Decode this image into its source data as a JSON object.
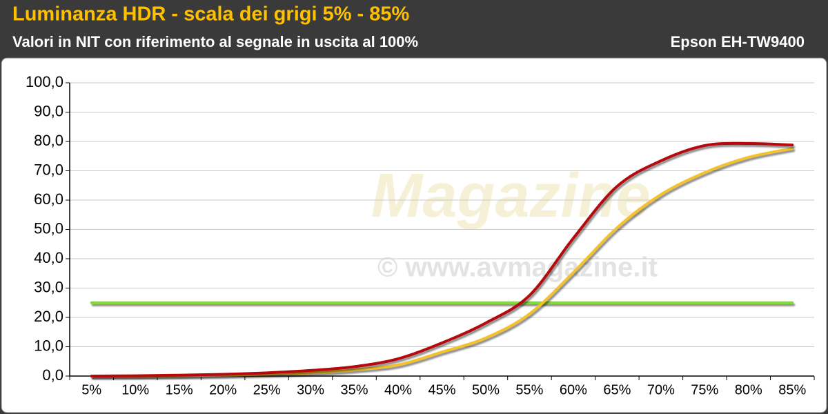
{
  "chart_data": {
    "type": "line",
    "title": "Luminanza HDR - scala dei grigi 5% - 85%",
    "subtitle": "Valori in NIT con riferimento al segnale in uscita al 100%",
    "device": "Epson EH-TW9400",
    "watermark": [
      "Magazine",
      "© www.avmagazine.it"
    ],
    "categories": [
      "5%",
      "10%",
      "15%",
      "20%",
      "25%",
      "30%",
      "35%",
      "40%",
      "45%",
      "50%",
      "55%",
      "60%",
      "65%",
      "70%",
      "75%",
      "80%",
      "85%"
    ],
    "series": [
      {
        "color": "#7fe02a",
        "values": [
          25,
          25,
          25,
          25,
          25,
          25,
          25,
          25,
          25,
          25,
          25,
          25,
          25,
          25,
          25,
          25,
          25
        ]
      },
      {
        "color": "#f5c22b",
        "values": [
          0,
          0,
          0.1,
          0.3,
          0.6,
          1.1,
          2.1,
          3.8,
          8.2,
          13,
          21.2,
          35.3,
          50.6,
          61.9,
          69.4,
          74.6,
          77.6
        ]
      },
      {
        "color": "#b5090d",
        "values": [
          0,
          0.1,
          0.3,
          0.6,
          1.1,
          1.9,
          3.2,
          5.9,
          11.3,
          18.1,
          27.5,
          47,
          64.7,
          73.4,
          78.6,
          79.3,
          78.8
        ]
      }
    ],
    "ylim": [
      0,
      100
    ],
    "yticks": [
      {
        "value": 0,
        "label": "0,0"
      },
      {
        "value": 10,
        "label": "10,0"
      },
      {
        "value": 20,
        "label": "20,0"
      },
      {
        "value": 30,
        "label": "30,0"
      },
      {
        "value": 40,
        "label": "40,0"
      },
      {
        "value": 50,
        "label": "50,0"
      },
      {
        "value": 60,
        "label": "60,0"
      },
      {
        "value": 70,
        "label": "70,0"
      },
      {
        "value": 80,
        "label": "80,0"
      },
      {
        "value": 90,
        "label": "90,0"
      },
      {
        "value": 100,
        "label": "100,0"
      }
    ],
    "grid": true
  }
}
